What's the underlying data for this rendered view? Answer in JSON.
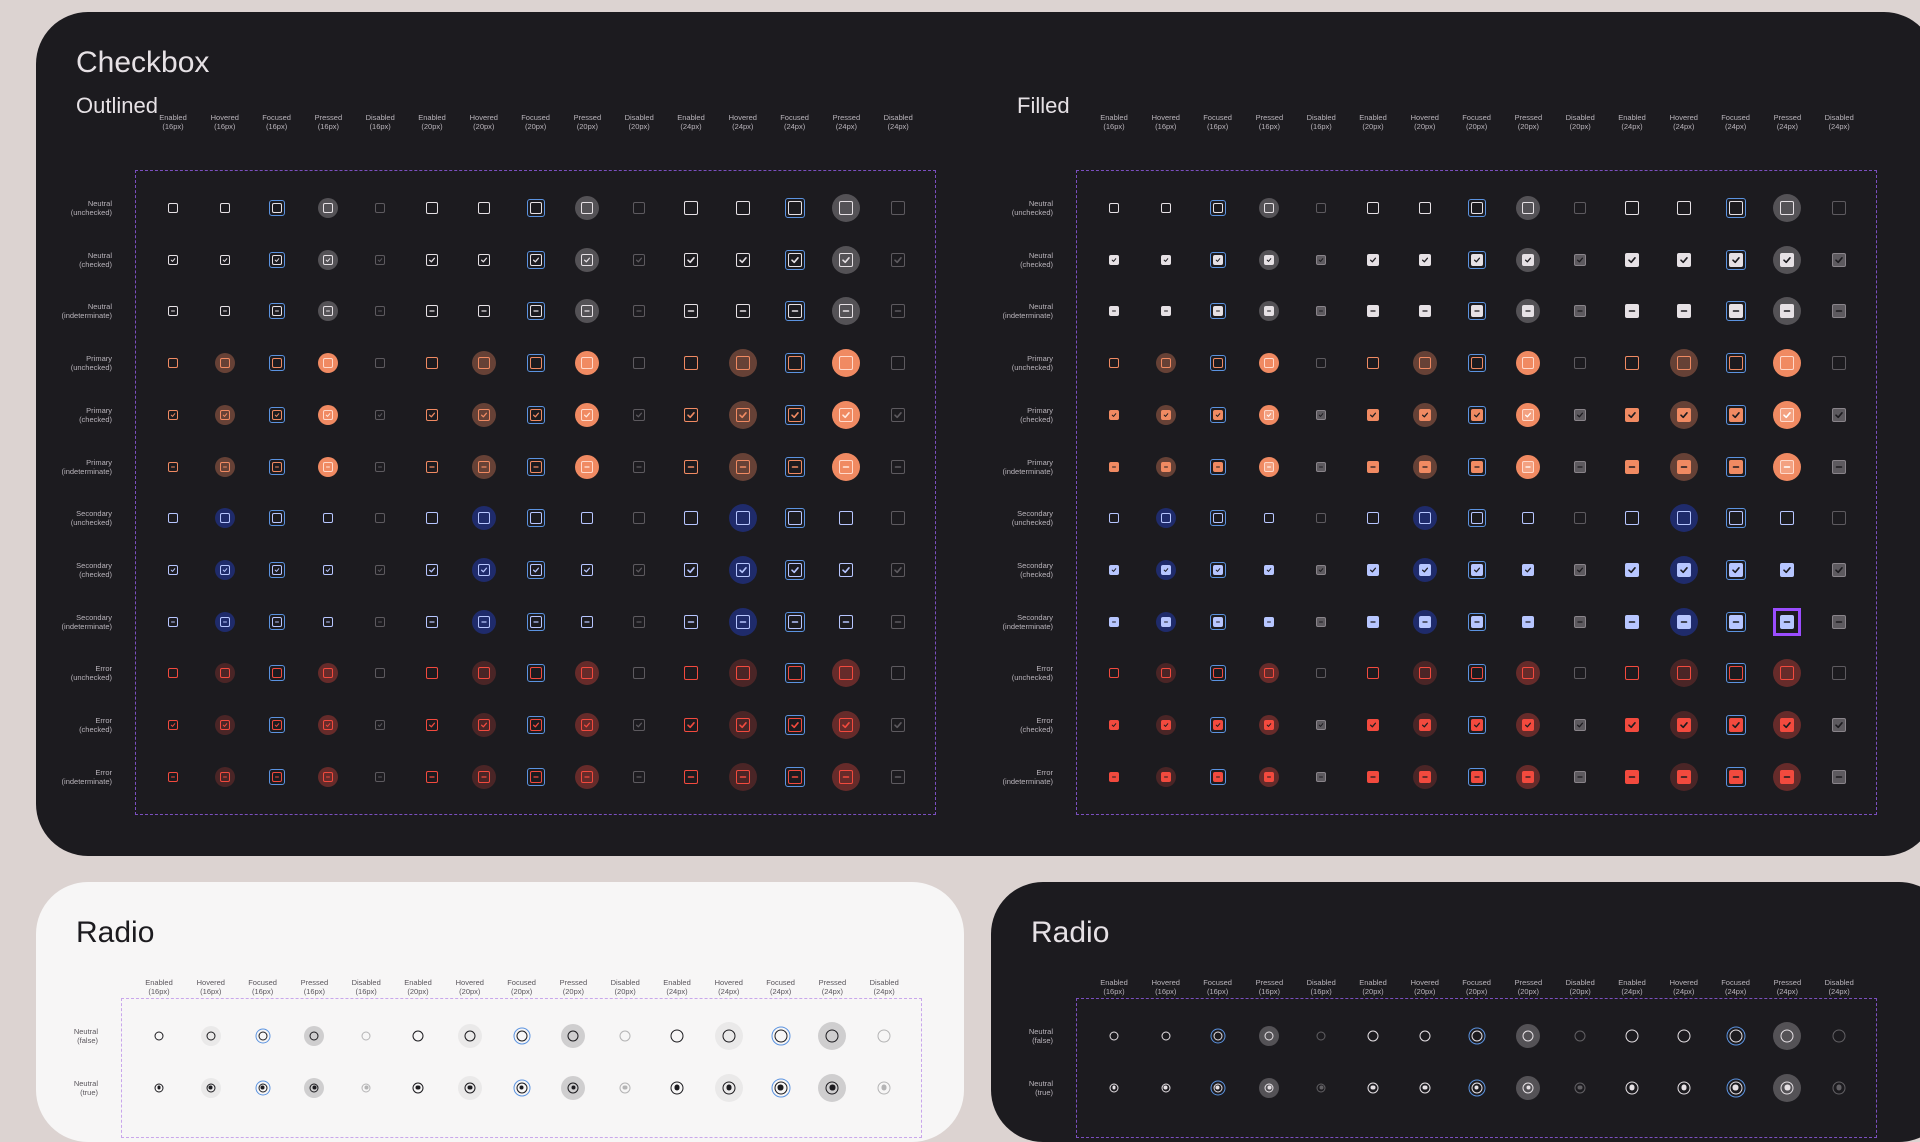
{
  "checkbox_panel": {
    "title": "Checkbox",
    "outlined_title": "Outlined",
    "filled_title": "Filled"
  },
  "radio_light_panel": {
    "title": "Radio"
  },
  "radio_dark_panel": {
    "title": "Radio"
  },
  "columns": [
    {
      "state": "Enabled",
      "size": "(16px)"
    },
    {
      "state": "Hovered",
      "size": "(16px)"
    },
    {
      "state": "Focused",
      "size": "(16px)"
    },
    {
      "state": "Pressed",
      "size": "(16px)"
    },
    {
      "state": "Disabled",
      "size": "(16px)"
    },
    {
      "state": "Enabled",
      "size": "(20px)"
    },
    {
      "state": "Hovered",
      "size": "(20px)"
    },
    {
      "state": "Focused",
      "size": "(20px)"
    },
    {
      "state": "Pressed",
      "size": "(20px)"
    },
    {
      "state": "Disabled",
      "size": "(20px)"
    },
    {
      "state": "Enabled",
      "size": "(24px)"
    },
    {
      "state": "Hovered",
      "size": "(24px)"
    },
    {
      "state": "Focused",
      "size": "(24px)"
    },
    {
      "state": "Pressed",
      "size": "(24px)"
    },
    {
      "state": "Disabled",
      "size": "(24px)"
    }
  ],
  "checkbox_rows": [
    {
      "color": "Neutral",
      "variant": "(unchecked)"
    },
    {
      "color": "Neutral",
      "variant": "(checked)"
    },
    {
      "color": "Neutral",
      "variant": "(indeterminate)"
    },
    {
      "color": "Primary",
      "variant": "(unchecked)"
    },
    {
      "color": "Primary",
      "variant": "(checked)"
    },
    {
      "color": "Primary",
      "variant": "(indeterminate)"
    },
    {
      "color": "Secondary",
      "variant": "(unchecked)"
    },
    {
      "color": "Secondary",
      "variant": "(checked)"
    },
    {
      "color": "Secondary",
      "variant": "(indeterminate)"
    },
    {
      "color": "Error",
      "variant": "(unchecked)"
    },
    {
      "color": "Error",
      "variant": "(checked)"
    },
    {
      "color": "Error",
      "variant": "(indeterminate)"
    }
  ],
  "radio_rows": [
    {
      "color": "Neutral",
      "variant": "(false)"
    },
    {
      "color": "Neutral",
      "variant": "(true)"
    }
  ],
  "colors": {
    "neutral": "#e6e1e5",
    "neutral_light": "#1c1b1f",
    "primary": "#f08a62",
    "secondary": "#b7c6ff",
    "secondary_halo": "#1f2b6b",
    "error": "#f24a3e",
    "focus": "#5b93e0",
    "selection_marker": "#9b4dff"
  }
}
